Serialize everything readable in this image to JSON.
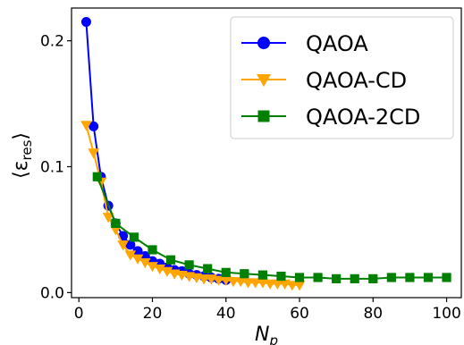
{
  "chart_data": {
    "type": "line",
    "xlabel_main": "N",
    "xlabel_sub": "p",
    "ylabel_main": "⟨ε",
    "ylabel_sub": "res",
    "ylabel_close": "⟩",
    "xlim": [
      -2,
      104
    ],
    "ylim": [
      -0.004,
      0.226
    ],
    "xticks": [
      0,
      20,
      40,
      60,
      80,
      100
    ],
    "xtick_labels": [
      "0",
      "20",
      "40",
      "60",
      "80",
      "100"
    ],
    "yticks": [
      0.0,
      0.1,
      0.2
    ],
    "ytick_labels": [
      "0.0",
      "0.1",
      "0.2"
    ],
    "grid": false,
    "legend_position": "top-right",
    "series": [
      {
        "name": "QAOA",
        "color": "#0000ff",
        "marker": "circle",
        "x": [
          2,
          4,
          6,
          8,
          10,
          12,
          14,
          16,
          18,
          20,
          22,
          24,
          26,
          28,
          30,
          32,
          34,
          36,
          38,
          40
        ],
        "y": [
          0.215,
          0.132,
          0.092,
          0.069,
          0.055,
          0.045,
          0.038,
          0.033,
          0.029,
          0.025,
          0.023,
          0.02,
          0.018,
          0.017,
          0.015,
          0.014,
          0.013,
          0.012,
          0.011,
          0.01
        ]
      },
      {
        "name": "QAOA-CD",
        "color": "#ffa500",
        "marker": "triangle-down",
        "x": [
          2,
          4,
          6,
          8,
          10,
          12,
          14,
          16,
          18,
          20,
          22,
          24,
          26,
          28,
          30,
          32,
          34,
          36,
          38,
          40,
          42,
          44,
          46,
          48,
          50,
          52,
          54,
          56,
          58,
          60
        ],
        "y": [
          0.133,
          0.111,
          0.088,
          0.06,
          0.05,
          0.038,
          0.03,
          0.027,
          0.024,
          0.021,
          0.019,
          0.017,
          0.015,
          0.014,
          0.013,
          0.012,
          0.011,
          0.011,
          0.01,
          0.01,
          0.009,
          0.009,
          0.008,
          0.008,
          0.008,
          0.007,
          0.007,
          0.007,
          0.006,
          0.006
        ]
      },
      {
        "name": "QAOA-2CD",
        "color": "#008000",
        "marker": "square",
        "x": [
          5,
          10,
          15,
          20,
          25,
          30,
          35,
          40,
          45,
          50,
          55,
          60,
          65,
          70,
          75,
          80,
          85,
          90,
          95,
          100
        ],
        "y": [
          0.092,
          0.055,
          0.044,
          0.034,
          0.026,
          0.022,
          0.019,
          0.016,
          0.015,
          0.014,
          0.013,
          0.012,
          0.012,
          0.011,
          0.011,
          0.011,
          0.012,
          0.012,
          0.012,
          0.012
        ]
      }
    ]
  }
}
